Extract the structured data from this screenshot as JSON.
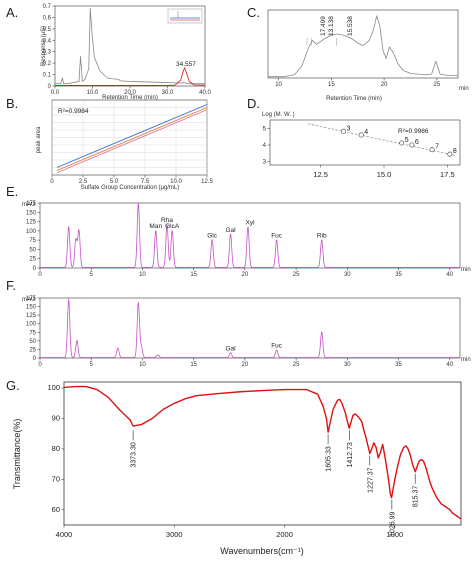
{
  "colors": {
    "trace_gray": "#888888",
    "trace_magenta": "#c455c4",
    "trace_red": "#e01010",
    "line_A_red": "#e05050",
    "line_B_blue": "#3a6ad0",
    "line_B_orange": "#e07a3a",
    "line_B_pink": "#e07aa0",
    "fit_gray": "#999999"
  },
  "panels": {
    "A": "A.",
    "B": "B.",
    "C": "C.",
    "D": "D.",
    "E": "E.",
    "F": "F.",
    "G": "G."
  },
  "chart_data": [
    {
      "id": "A",
      "type": "line",
      "ylabel": "Response (μS)",
      "xlabel": "Retention Time (min)",
      "xlim": [
        0,
        40
      ],
      "ylim": [
        0,
        0.7
      ],
      "xticks": [
        "0.0",
        "10.0",
        "20.0",
        "30.0",
        "40.0"
      ],
      "yticks": [
        "0",
        "0.1",
        "0.2",
        "0.3",
        "0.4",
        "0.5",
        "0.6",
        "0.7"
      ],
      "annotation": "34.557",
      "series": [
        {
          "color": "gray",
          "x": [
            0,
            1.5,
            2,
            2.3,
            3,
            5,
            6.4,
            6.8,
            7.3,
            8,
            9,
            9.4,
            9.9,
            10.5,
            12,
            14,
            16,
            16.8,
            17.5,
            20,
            30,
            33.5,
            34.2,
            35,
            36,
            40
          ],
          "y": [
            0.02,
            0.02,
            0.07,
            0.02,
            0.02,
            0.03,
            0.04,
            0.26,
            0.04,
            0.06,
            0.15,
            0.68,
            0.45,
            0.25,
            0.13,
            0.07,
            0.06,
            0.06,
            0.045,
            0.04,
            0.03,
            0.025,
            0.03,
            0.025,
            0.02,
            0.02
          ]
        },
        {
          "color": "red",
          "x": [
            0,
            30,
            32,
            33.5,
            34.2,
            34.56,
            35,
            35.8,
            37,
            40
          ],
          "y": [
            0.005,
            0.005,
            0.008,
            0.05,
            0.13,
            0.16,
            0.12,
            0.04,
            0.01,
            0.008
          ]
        }
      ]
    },
    {
      "id": "B",
      "type": "line",
      "ylabel": "peak area",
      "xlabel": "Sulfate Group Concentration (μg/mL)",
      "xlim": [
        0,
        12.5
      ],
      "ylim": [
        0,
        1
      ],
      "xticks": [
        "0",
        "2.5",
        "5.0",
        "7.5",
        "10.0",
        "12.5"
      ],
      "yticks": [
        "0",
        "0.1",
        "0.2",
        "0.3",
        "0.4",
        "0.5",
        "0.6",
        "0.7",
        "0.8",
        "0.9",
        "1.0"
      ],
      "annotation": "R²=0.9984",
      "series": [
        {
          "color": "pink",
          "x": [
            0.4,
            12.5
          ],
          "y": [
            0.03,
            0.87
          ]
        },
        {
          "color": "orange",
          "x": [
            0.4,
            12.5
          ],
          "y": [
            0.06,
            0.9
          ]
        },
        {
          "color": "blue",
          "x": [
            0.4,
            12.5
          ],
          "y": [
            0.1,
            0.94
          ]
        }
      ]
    },
    {
      "id": "C",
      "type": "line",
      "xlabel": "Retention Time (min)",
      "xunit": "min",
      "xlim": [
        9,
        27
      ],
      "xticks": [
        "10",
        "15",
        "20",
        "25"
      ],
      "peak_labels": [
        "17.499",
        "13.138",
        "15.538"
      ],
      "series": [
        {
          "color": "gray",
          "x": [
            9,
            10.5,
            11.5,
            12.2,
            12.8,
            13.2,
            13.6,
            14.3,
            15,
            15.5,
            16.2,
            17,
            17.5,
            18,
            18.6,
            19,
            19.3,
            19.6,
            19.9,
            20.2,
            20.5,
            20.9,
            21.3,
            21.8,
            22.5,
            24,
            24.5,
            24.9,
            25.3,
            26,
            27
          ],
          "y": [
            0.02,
            0.02,
            0.05,
            0.18,
            0.45,
            0.58,
            0.52,
            0.6,
            0.66,
            0.68,
            0.66,
            0.6,
            0.54,
            0.5,
            0.58,
            0.75,
            0.96,
            0.8,
            0.42,
            0.3,
            0.48,
            0.38,
            0.22,
            0.12,
            0.07,
            0.05,
            0.06,
            0.26,
            0.06,
            0.04,
            0.04
          ]
        }
      ]
    },
    {
      "id": "D",
      "type": "scatter",
      "ylabel": "Log (M. W. )",
      "xlim": [
        10.5,
        18
      ],
      "ylim": [
        2.8,
        5.5
      ],
      "xticks": [
        "12.5",
        "15.0",
        "17.5"
      ],
      "yticks": [
        "3",
        "4",
        "5"
      ],
      "annotation": "R²=0.9986",
      "points": [
        {
          "label": "3",
          "x": 13.4,
          "y": 4.82
        },
        {
          "label": "4",
          "x": 14.1,
          "y": 4.6
        },
        {
          "label": "5",
          "x": 15.7,
          "y": 4.12
        },
        {
          "label": "6",
          "x": 16.1,
          "y": 4.0
        },
        {
          "label": "7",
          "x": 16.9,
          "y": 3.72
        },
        {
          "label": "8",
          "x": 17.6,
          "y": 3.45
        }
      ],
      "fit": {
        "x": [
          12,
          17.8
        ],
        "y": [
          5.27,
          3.38
        ]
      }
    },
    {
      "id": "E",
      "type": "line",
      "ylabel": "mAU",
      "xunit": "min",
      "xlim": [
        0,
        41
      ],
      "ylim": [
        0,
        175
      ],
      "xticks": [
        "0",
        "5",
        "10",
        "15",
        "20",
        "25",
        "30",
        "35",
        "40"
      ],
      "yticks": [
        "0",
        "25",
        "50",
        "75",
        "100",
        "125",
        "150",
        "175"
      ],
      "peak_labels": [
        "Man",
        "Rha",
        "GlcA",
        "Glc",
        "Gal",
        "Xyl",
        "Fuc",
        "Rib"
      ],
      "series": [
        {
          "color": "magenta",
          "peaks": [
            [
              2.8,
              110
            ],
            [
              3.5,
              75
            ],
            [
              3.8,
              100
            ],
            [
              9.6,
              175
            ],
            [
              11.3,
              100
            ],
            [
              12.4,
              115
            ],
            [
              12.9,
              100
            ],
            [
              16.8,
              75
            ],
            [
              18.6,
              90
            ],
            [
              20.3,
              110
            ],
            [
              23.1,
              75
            ],
            [
              27.5,
              75
            ]
          ]
        }
      ]
    },
    {
      "id": "F",
      "type": "line",
      "ylabel": "mAU",
      "xunit": "min",
      "xlim": [
        0,
        41
      ],
      "ylim": [
        0,
        175
      ],
      "xticks": [
        "0",
        "5",
        "10",
        "15",
        "20",
        "25",
        "30",
        "35",
        "40"
      ],
      "yticks": [
        "0",
        "25",
        "50",
        "75",
        "100",
        "125",
        "150",
        "175"
      ],
      "peak_labels": [
        "Gal",
        "Fuc"
      ],
      "series": [
        {
          "color": "magenta",
          "peaks": [
            [
              2.8,
              170
            ],
            [
              3.6,
              50
            ],
            [
              7.6,
              28
            ],
            [
              9.6,
              160
            ],
            [
              9.9,
              30
            ],
            [
              11.5,
              8
            ],
            [
              18.6,
              14
            ],
            [
              23.1,
              22
            ],
            [
              27.5,
              75
            ]
          ]
        }
      ]
    },
    {
      "id": "G",
      "type": "line",
      "ylabel": "Transmittance(%)",
      "xlabel": "Wavenumbers(cm⁻¹)",
      "xlim": [
        4000,
        400
      ],
      "ylim": [
        55,
        102
      ],
      "xticks": [
        "4000",
        "3000",
        "2000",
        "1000"
      ],
      "yticks": [
        "60",
        "70",
        "80",
        "90",
        "100"
      ],
      "annotations": [
        {
          "label": "3373.30",
          "x": 3373.3,
          "y": 86.8
        },
        {
          "label": "1605.33",
          "x": 1605.33,
          "y": 85.5
        },
        {
          "label": "1412.73",
          "x": 1412.73,
          "y": 86.8
        },
        {
          "label": "1227.37",
          "x": 1227.37,
          "y": 78.5
        },
        {
          "label": "1026.99",
          "x": 1026.99,
          "y": 64
        },
        {
          "label": "815.37",
          "x": 815.37,
          "y": 72.5
        }
      ],
      "series": [
        {
          "color": "red",
          "x": [
            4000,
            3900,
            3800,
            3700,
            3600,
            3500,
            3400,
            3373,
            3300,
            3200,
            3100,
            3000,
            2900,
            2800,
            2600,
            2400,
            2200,
            2000,
            1800,
            1700,
            1650,
            1620,
            1605,
            1590,
            1560,
            1520,
            1500,
            1480,
            1450,
            1430,
            1413,
            1400,
            1380,
            1360,
            1330,
            1300,
            1280,
            1260,
            1240,
            1227,
            1210,
            1190,
            1170,
            1150,
            1130,
            1110,
            1090,
            1070,
            1050,
            1040,
            1030,
            1027,
            1020,
            1000,
            980,
            950,
            920,
            900,
            880,
            860,
            840,
            815,
            800,
            780,
            760,
            740,
            720,
            700,
            680,
            660,
            640,
            620,
            600,
            580,
            560,
            540,
            520,
            500,
            480,
            460,
            440,
            420,
            400
          ],
          "y": [
            100.2,
            100.5,
            100.5,
            99.5,
            97,
            93,
            89.5,
            87.5,
            88,
            90,
            93,
            95,
            96.5,
            97.5,
            98.2,
            98.8,
            99.2,
            99.5,
            99.5,
            98,
            94,
            90,
            85.5,
            88,
            93,
            96,
            96.3,
            95,
            92,
            89,
            86.8,
            88.5,
            91,
            91.5,
            90.5,
            89,
            86,
            83.5,
            80.5,
            78.5,
            80,
            82,
            80.5,
            77,
            79,
            81.5,
            77.5,
            73,
            68,
            65,
            64,
            64.5,
            66,
            70,
            73.5,
            78,
            80.5,
            81,
            80,
            78,
            75,
            72.5,
            74,
            76,
            76.5,
            76,
            74,
            71.5,
            69,
            67,
            65.5,
            64,
            63,
            62,
            61.5,
            61,
            60.5,
            60,
            59,
            58.5,
            58,
            57.5,
            57
          ]
        }
      ]
    }
  ]
}
